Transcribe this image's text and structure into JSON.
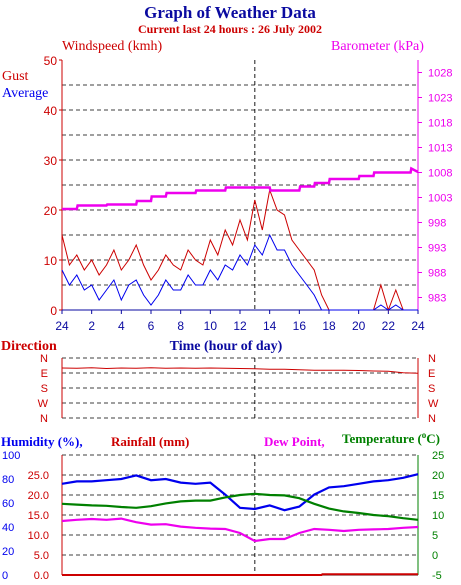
{
  "header": {
    "title": "Graph of Weather Data",
    "subtitle": "Current last 24 hours : 26 July 2002"
  },
  "colors": {
    "navy": "#0a0aa0",
    "red": "#cc0000",
    "magenta": "#ee00ee",
    "blue": "#0000ee",
    "green": "#008000",
    "grid": "#000000"
  },
  "chart_data": [
    {
      "type": "line",
      "panel": "wind",
      "title": "",
      "left_axis_title": "Windspeed (kmh)",
      "right_axis_title": "Barometer (kPa)",
      "legend": [
        "Gust",
        "Average"
      ],
      "xlabel": "Time (hour of day)",
      "x_tick_labels": [
        "24",
        "2",
        "4",
        "6",
        "8",
        "10",
        "12",
        "14",
        "16",
        "18",
        "20",
        "22",
        "24"
      ],
      "xlim": [
        0,
        24
      ],
      "ylim": [
        0,
        50
      ],
      "y_ticks": [
        0,
        10,
        20,
        30,
        40,
        50
      ],
      "y2lim": [
        980.5,
        1030.5
      ],
      "y2_ticks": [
        983,
        988,
        993,
        998,
        1003,
        1008,
        1013,
        1018,
        1023,
        1028
      ],
      "grid": "dashed horizontal every 5 kmh, dashed vertical at current time",
      "current_time_marker": 13,
      "series": [
        {
          "name": "Gust",
          "color": "red",
          "axis": "left",
          "x": [
            0,
            0.5,
            1,
            1.5,
            2,
            2.5,
            3,
            3.5,
            4,
            4.5,
            5,
            5.5,
            6,
            6.5,
            7,
            7.5,
            8,
            8.5,
            9,
            9.5,
            10,
            10.5,
            11,
            11.5,
            12,
            12.5,
            13,
            13.5,
            14,
            14.5,
            15,
            15.5,
            16,
            16.5,
            17,
            17.5,
            18,
            18.5,
            19,
            19.5,
            20,
            20.5,
            21,
            21.5,
            22,
            22.5,
            23,
            23.5,
            24
          ],
          "values": [
            15,
            9,
            11,
            8,
            10,
            7,
            9,
            12,
            8,
            10,
            13,
            9,
            6,
            8,
            11,
            9,
            8,
            12,
            10,
            9,
            14,
            11,
            16,
            13,
            18,
            14,
            22,
            16,
            24,
            20,
            19,
            14,
            12,
            10,
            8,
            3,
            0,
            0,
            0,
            0,
            0,
            0,
            0,
            5,
            0,
            4,
            0,
            0,
            0
          ]
        },
        {
          "name": "Average",
          "color": "blue",
          "axis": "left",
          "x": [
            0,
            0.5,
            1,
            1.5,
            2,
            2.5,
            3,
            3.5,
            4,
            4.5,
            5,
            5.5,
            6,
            6.5,
            7,
            7.5,
            8,
            8.5,
            9,
            9.5,
            10,
            10.5,
            11,
            11.5,
            12,
            12.5,
            13,
            13.5,
            14,
            14.5,
            15,
            15.5,
            16,
            16.5,
            17,
            17.5,
            18,
            18.5,
            19,
            19.5,
            20,
            20.5,
            21,
            21.5,
            22,
            22.5,
            23,
            23.5,
            24
          ],
          "values": [
            8,
            5,
            7,
            4,
            5,
            2,
            4,
            6,
            2,
            5,
            6,
            3,
            1,
            3,
            6,
            4,
            4,
            7,
            5,
            5,
            8,
            6,
            9,
            8,
            11,
            9,
            13,
            11,
            15,
            12,
            12,
            9,
            7,
            5,
            3,
            0,
            0,
            0,
            0,
            0,
            0,
            0,
            0,
            1,
            0,
            1,
            0,
            0,
            0
          ]
        },
        {
          "name": "Barometer",
          "color": "magenta",
          "axis": "right",
          "x": [
            0,
            1,
            1.05,
            3,
            3.05,
            5,
            5.05,
            6,
            6.05,
            7,
            7.05,
            9,
            9.05,
            11,
            11.05,
            14,
            14.05,
            16,
            16.05,
            17,
            17.05,
            18,
            18.05,
            20,
            20.05,
            21,
            21.05,
            23.5,
            23.55,
            24
          ],
          "values": [
            1000.7,
            1000.7,
            1001.4,
            1001.4,
            1001.6,
            1001.6,
            1002.3,
            1002.3,
            1003.2,
            1003.2,
            1003.9,
            1003.9,
            1004.4,
            1004.4,
            1005,
            1005,
            1004.4,
            1004.4,
            1005.2,
            1005.2,
            1005.9,
            1005.9,
            1006.7,
            1006.7,
            1007.3,
            1007.3,
            1008,
            1008,
            1008.8,
            1008.1
          ]
        }
      ]
    },
    {
      "type": "line",
      "panel": "direction",
      "title": "Direction",
      "y_labels": [
        "N",
        "W",
        "S",
        "E",
        "N"
      ],
      "xlim": [
        0,
        24
      ],
      "series": [
        {
          "name": "",
          "color": "red",
          "x": [
            0,
            1,
            2,
            3,
            4,
            5,
            6,
            7,
            8,
            9,
            10,
            11,
            12,
            13,
            14,
            15,
            16,
            17,
            18,
            19,
            20,
            21,
            22,
            23,
            24
          ],
          "values": [
            300,
            298,
            302,
            297,
            300,
            299,
            301,
            298,
            300,
            299,
            300,
            298,
            297,
            296,
            293,
            292,
            289,
            287,
            287,
            286,
            285,
            282,
            280,
            271,
            269
          ]
        }
      ]
    },
    {
      "type": "line",
      "panel": "humidity",
      "titles": [
        "Humidity (%),",
        "Rainfall (mm)",
        "Dew Point,",
        "Temperature (",
        "C)"
      ],
      "left_labels_humidity": [
        "0",
        "20",
        "40",
        "60",
        "80",
        "100"
      ],
      "left_labels_rainfall": [
        "0.0",
        "5.0",
        "10.0",
        "15.0",
        "20.0",
        "25.0"
      ],
      "right_labels_temperature": [
        "-5",
        "0",
        "5",
        "10",
        "15",
        "20",
        "25"
      ],
      "xlim": [
        0,
        24
      ],
      "ylim_humidity": [
        0,
        100
      ],
      "series": [
        {
          "name": "Humidity (%)",
          "color": "blue",
          "axis": "humidity",
          "x": [
            0,
            1,
            2,
            3,
            4,
            5,
            6,
            7,
            8,
            9,
            10,
            11,
            12,
            13,
            14,
            15,
            16,
            17,
            18,
            19,
            20,
            21,
            22,
            23,
            24
          ],
          "values": [
            76,
            78,
            78,
            79,
            80,
            83,
            79,
            80,
            77,
            76,
            77,
            67,
            56,
            55,
            58,
            54,
            57,
            67,
            73,
            74,
            76,
            78,
            79,
            81,
            84
          ]
        },
        {
          "name": "Rainfall (mm)",
          "color": "red",
          "axis": "rainfall",
          "x": [
            0,
            10,
            17.5,
            17.55,
            24
          ],
          "values": [
            0,
            0,
            0,
            0.2,
            0.2
          ]
        },
        {
          "name": "Dew Point",
          "color": "magenta",
          "axis": "temperature",
          "x": [
            0,
            1,
            2,
            3,
            4,
            5,
            6,
            7,
            8,
            9,
            10,
            11,
            12,
            13,
            14,
            15,
            16,
            17,
            18,
            19,
            20,
            21,
            22,
            23,
            24
          ],
          "values": [
            8.5,
            8.8,
            9.0,
            8.8,
            9.1,
            8.2,
            7.6,
            7.7,
            7.1,
            6.8,
            6.6,
            6.5,
            5.5,
            3.5,
            4.0,
            4.0,
            5.5,
            6.5,
            6.3,
            6.0,
            6.3,
            6.4,
            6.5,
            6.8,
            7.0
          ]
        },
        {
          "name": "Temperature",
          "color": "green",
          "axis": "temperature",
          "x": [
            0,
            1,
            2,
            3,
            4,
            5,
            6,
            7,
            8,
            9,
            10,
            11,
            12,
            13,
            14,
            15,
            16,
            17,
            18,
            19,
            20,
            21,
            22,
            23,
            24
          ],
          "values": [
            12.8,
            12.6,
            12.4,
            12.3,
            12.0,
            11.8,
            12.2,
            12.9,
            13.4,
            13.6,
            13.6,
            14.4,
            15.0,
            15.3,
            15.0,
            14.9,
            14.2,
            12.8,
            11.6,
            10.9,
            10.5,
            10.0,
            9.7,
            9.2,
            8.8
          ]
        }
      ]
    }
  ]
}
